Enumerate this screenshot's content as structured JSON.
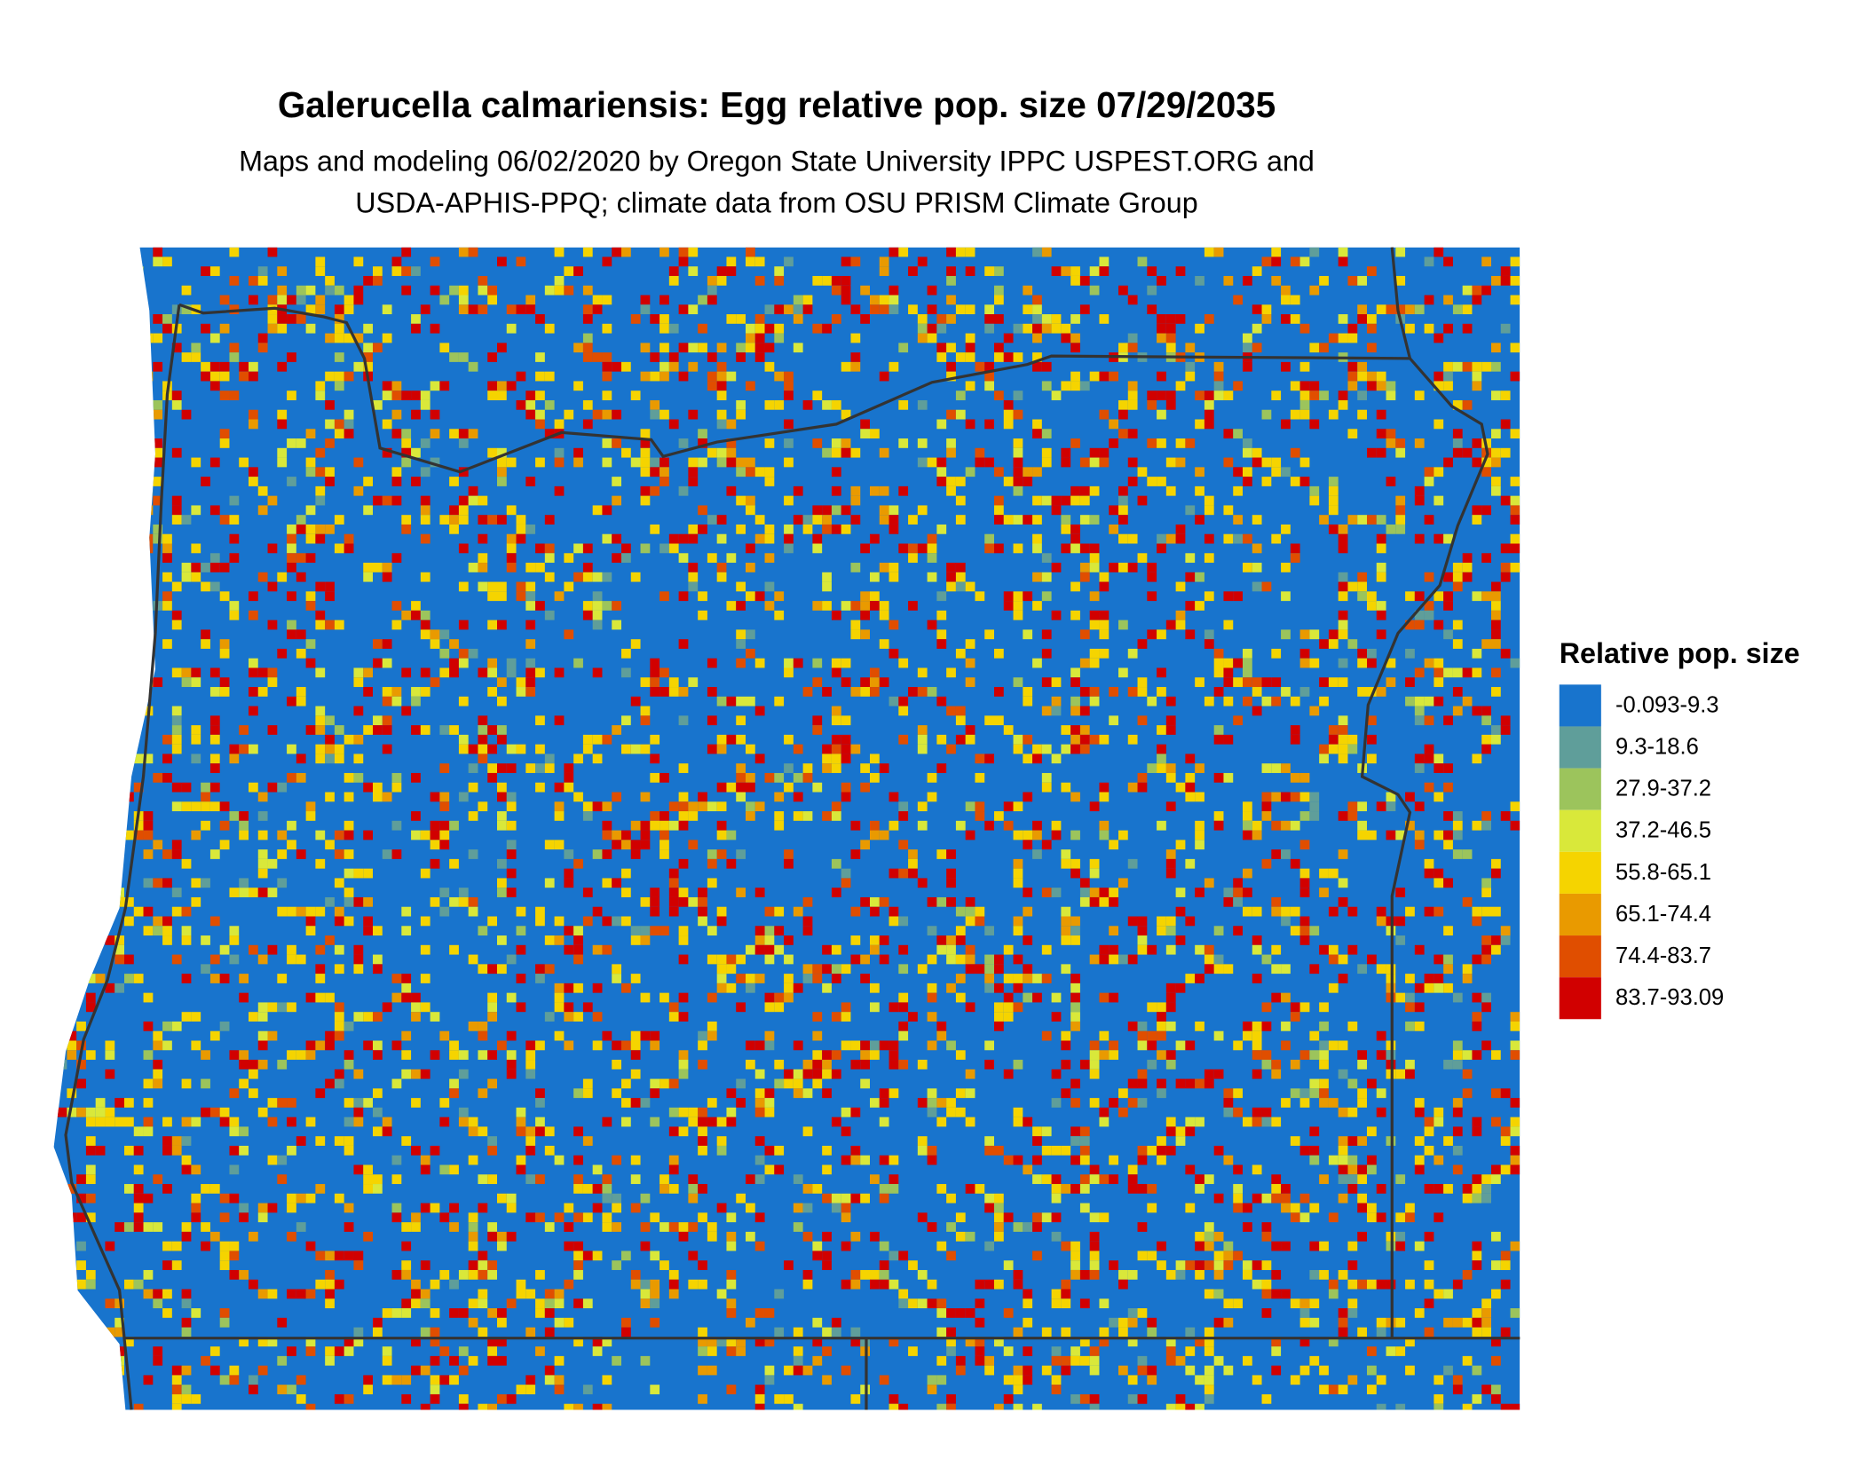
{
  "title": "Galerucella calmariensis: Egg relative pop. size 07/29/2035",
  "subtitle": [
    "Maps and modeling 06/02/2020 by Oregon State University IPPC USPEST.ORG and",
    "USDA-APHIS-PPQ; climate data from OSU PRISM Climate Group"
  ],
  "legend": {
    "title": "Relative pop. size",
    "items": [
      {
        "label": "-0.093-9.3",
        "color": "#1874cd"
      },
      {
        "label": "9.3-18.6",
        "color": "#5f9e9a"
      },
      {
        "label": "27.9-37.2",
        "color": "#9cc45c"
      },
      {
        "label": "37.2-46.5",
        "color": "#d9e83a"
      },
      {
        "label": "55.8-65.1",
        "color": "#f5d400"
      },
      {
        "label": "65.1-74.4",
        "color": "#e99a00"
      },
      {
        "label": "74.4-83.7",
        "color": "#e04e00"
      },
      {
        "label": "83.7-93.09",
        "color": "#d10000"
      }
    ]
  }
}
